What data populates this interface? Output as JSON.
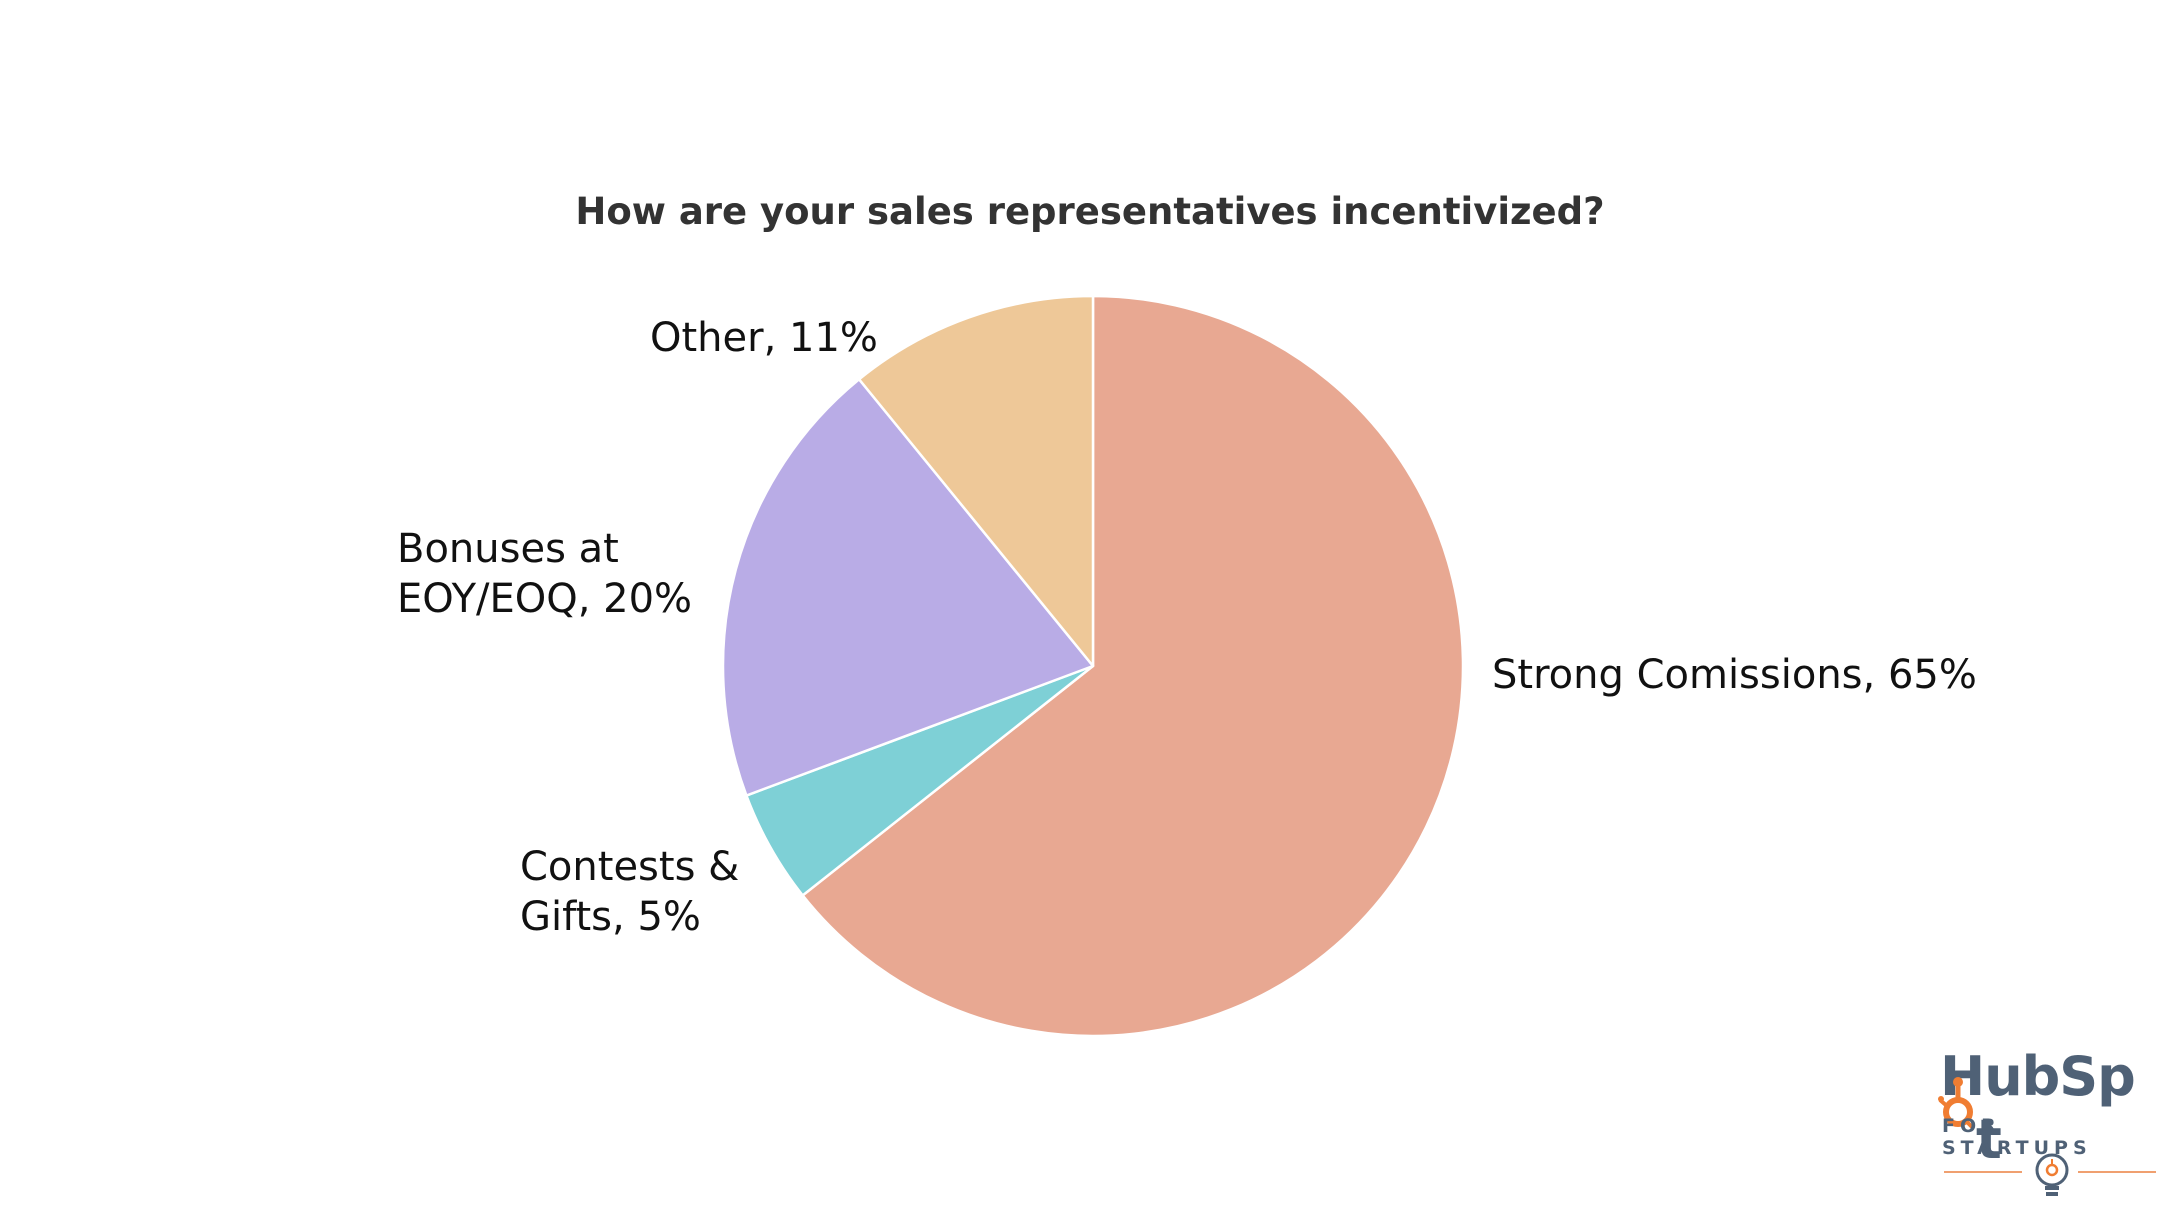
{
  "chart_data": {
    "type": "pie",
    "title": "How are your sales representatives incentivized?",
    "slices": [
      {
        "name": "Strong Comissions",
        "value": 65,
        "label": "Strong Comissions, 65%",
        "color": "#e8a892"
      },
      {
        "name": "Contests & Gifts",
        "value": 5,
        "label_lines": [
          "Contests &",
          "Gifts, 5%"
        ],
        "color": "#7ed0d6"
      },
      {
        "name": "Bonuses at EOY/EOQ",
        "value": 20,
        "label_lines": [
          "Bonuses at",
          "EOY/EOQ, 20%"
        ],
        "color": "#b9ace6"
      },
      {
        "name": "Other",
        "value": 11,
        "label": "Other, 11%",
        "color": "#eec898"
      }
    ]
  },
  "logo": {
    "brand_prefix": "HubSp",
    "brand_suffix": "t",
    "tagline": "FOR STARTUPS",
    "text_color": "#4f6176",
    "accent_color": "#f07d32"
  }
}
